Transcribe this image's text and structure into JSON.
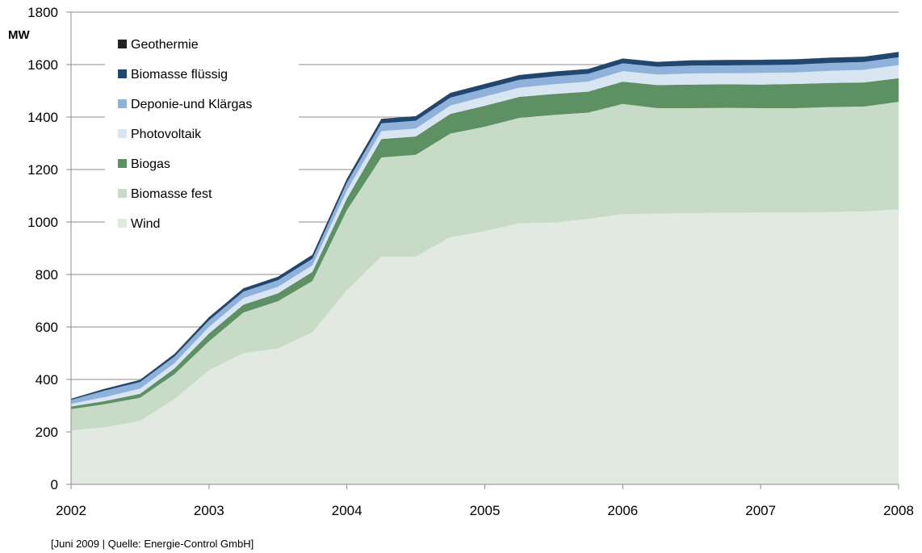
{
  "chart_data": {
    "type": "area",
    "stacked": true,
    "unit_label": "MW",
    "x": [
      2002.0,
      2002.25,
      2002.5,
      2002.75,
      2003.0,
      2003.25,
      2003.5,
      2003.75,
      2004.0,
      2004.25,
      2004.5,
      2004.75,
      2005.0,
      2005.25,
      2005.5,
      2005.75,
      2006.0,
      2006.25,
      2006.5,
      2006.75,
      2007.0,
      2007.25,
      2007.5,
      2007.75,
      2008.0
    ],
    "x_ticks": [
      "2002",
      "2003",
      "2004",
      "2005",
      "2006",
      "2007",
      "2008"
    ],
    "xlim": [
      2002,
      2008
    ],
    "ylim": [
      0,
      1800
    ],
    "y_ticks": [
      "0",
      "200",
      "400",
      "600",
      "800",
      "1000",
      "1200",
      "1400",
      "1600",
      "1800"
    ],
    "grid": "horizontal",
    "legend_position": "top-left",
    "series": [
      {
        "name": "Wind",
        "color": "#e1e9e0",
        "values": [
          205,
          218,
          242,
          325,
          435,
          500,
          518,
          580,
          740,
          868,
          868,
          942,
          965,
          995,
          998,
          1012,
          1030,
          1032,
          1034,
          1035,
          1036,
          1036,
          1038,
          1040,
          1048
        ]
      },
      {
        "name": "Biomasse fest",
        "color": "#c7dbc7",
        "values": [
          82,
          88,
          88,
          95,
          110,
          155,
          180,
          195,
          305,
          378,
          388,
          395,
          398,
          402,
          410,
          405,
          420,
          402,
          400,
          400,
          398,
          398,
          400,
          400,
          410
        ]
      },
      {
        "name": "Biogas",
        "color": "#5d9163",
        "values": [
          10,
          12,
          15,
          22,
          30,
          30,
          30,
          35,
          45,
          70,
          70,
          75,
          80,
          80,
          80,
          80,
          85,
          88,
          90,
          90,
          90,
          92,
          92,
          92,
          90
        ]
      },
      {
        "name": "Photovoltaik",
        "color": "#d9e6f2",
        "values": [
          10,
          15,
          20,
          20,
          25,
          25,
          25,
          25,
          30,
          30,
          30,
          32,
          35,
          35,
          37,
          38,
          40,
          40,
          42,
          42,
          44,
          44,
          46,
          48,
          50
        ]
      },
      {
        "name": "Deponie-und Klärgas",
        "color": "#8fb2da",
        "values": [
          15,
          25,
          25,
          25,
          25,
          25,
          25,
          25,
          30,
          30,
          30,
          30,
          30,
          30,
          30,
          30,
          30,
          30,
          30,
          30,
          30,
          30,
          30,
          30,
          30
        ]
      },
      {
        "name": "Biomasse flüssig",
        "color": "#21466f",
        "values": [
          4,
          7,
          8,
          10,
          12,
          12,
          13,
          15,
          15,
          17,
          17,
          18,
          18,
          18,
          18,
          18,
          18,
          18,
          20,
          20,
          20,
          20,
          20,
          20,
          20
        ]
      },
      {
        "name": "Geothermie",
        "color": "#222222",
        "values": [
          0.5,
          0.5,
          0.5,
          0.5,
          0.5,
          0.5,
          0.5,
          0.5,
          0.5,
          0.5,
          0.5,
          0.5,
          0.5,
          0.5,
          0.5,
          0.5,
          0.5,
          0.5,
          0.5,
          0.5,
          0.5,
          0.5,
          0.5,
          0.5,
          0.5
        ]
      }
    ],
    "legend_order": [
      "Geothermie",
      "Biomasse flüssig",
      "Deponie-und Klärgas",
      "Photovoltaik",
      "Biogas",
      "Biomasse fest",
      "Wind"
    ]
  },
  "source_note": "[Juni 2009 | Quelle: Energie-Control GmbH]"
}
